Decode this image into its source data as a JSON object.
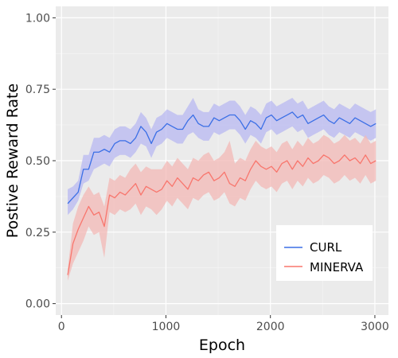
{
  "chart_data": {
    "type": "line",
    "xlabel": "Epoch",
    "ylabel": "Postive Reward Rate",
    "xlim": [
      -55,
      3130
    ],
    "ylim": [
      -0.04,
      1.04
    ],
    "x_ticks": [
      0,
      1000,
      2000,
      3000
    ],
    "x_tick_labels": [
      "0",
      "1000",
      "2000",
      "3000"
    ],
    "y_ticks": [
      0.0,
      0.25,
      0.5,
      0.75,
      1.0
    ],
    "y_tick_labels": [
      "0.00",
      "0.25",
      "0.50",
      "0.75",
      "1.00"
    ],
    "grid": true,
    "legend_position": "bottom-right",
    "x": [
      60,
      110,
      160,
      210,
      260,
      310,
      360,
      410,
      460,
      510,
      560,
      610,
      660,
      710,
      760,
      810,
      860,
      910,
      960,
      1010,
      1060,
      1110,
      1160,
      1210,
      1260,
      1310,
      1360,
      1410,
      1460,
      1510,
      1560,
      1610,
      1660,
      1710,
      1760,
      1810,
      1860,
      1910,
      1960,
      2010,
      2060,
      2110,
      2160,
      2210,
      2260,
      2310,
      2360,
      2410,
      2460,
      2510,
      2560,
      2610,
      2660,
      2710,
      2760,
      2810,
      2860,
      2910,
      2960,
      3010
    ],
    "series": [
      {
        "name": "CURL",
        "color": "#3b6fe6",
        "band_color": "#b8b8f2",
        "values": [
          0.35,
          0.37,
          0.39,
          0.47,
          0.47,
          0.53,
          0.53,
          0.54,
          0.53,
          0.56,
          0.57,
          0.57,
          0.56,
          0.58,
          0.62,
          0.6,
          0.56,
          0.6,
          0.61,
          0.63,
          0.62,
          0.61,
          0.61,
          0.64,
          0.66,
          0.63,
          0.62,
          0.62,
          0.65,
          0.64,
          0.65,
          0.66,
          0.66,
          0.64,
          0.61,
          0.64,
          0.63,
          0.61,
          0.65,
          0.66,
          0.64,
          0.65,
          0.66,
          0.67,
          0.65,
          0.66,
          0.63,
          0.64,
          0.65,
          0.66,
          0.64,
          0.63,
          0.65,
          0.64,
          0.63,
          0.65,
          0.64,
          0.63,
          0.62,
          0.63
        ],
        "lower": [
          0.31,
          0.33,
          0.36,
          0.42,
          0.43,
          0.47,
          0.48,
          0.49,
          0.48,
          0.51,
          0.52,
          0.52,
          0.51,
          0.53,
          0.56,
          0.55,
          0.51,
          0.55,
          0.56,
          0.58,
          0.57,
          0.56,
          0.56,
          0.59,
          0.6,
          0.58,
          0.57,
          0.57,
          0.6,
          0.59,
          0.6,
          0.61,
          0.61,
          0.59,
          0.56,
          0.59,
          0.58,
          0.56,
          0.6,
          0.61,
          0.59,
          0.6,
          0.61,
          0.62,
          0.6,
          0.61,
          0.58,
          0.59,
          0.6,
          0.61,
          0.59,
          0.58,
          0.6,
          0.59,
          0.58,
          0.6,
          0.59,
          0.58,
          0.57,
          0.58
        ],
        "upper": [
          0.4,
          0.41,
          0.43,
          0.52,
          0.52,
          0.58,
          0.58,
          0.59,
          0.58,
          0.61,
          0.62,
          0.62,
          0.61,
          0.63,
          0.67,
          0.65,
          0.61,
          0.65,
          0.66,
          0.68,
          0.67,
          0.66,
          0.66,
          0.69,
          0.72,
          0.68,
          0.67,
          0.67,
          0.7,
          0.69,
          0.7,
          0.71,
          0.71,
          0.69,
          0.66,
          0.69,
          0.68,
          0.66,
          0.7,
          0.71,
          0.69,
          0.7,
          0.71,
          0.72,
          0.7,
          0.71,
          0.68,
          0.69,
          0.7,
          0.71,
          0.69,
          0.68,
          0.7,
          0.69,
          0.68,
          0.7,
          0.69,
          0.68,
          0.67,
          0.68
        ]
      },
      {
        "name": "MINERVA",
        "color": "#f8766d",
        "band_color": "#f3b8b5",
        "values": [
          0.1,
          0.21,
          0.26,
          0.3,
          0.34,
          0.31,
          0.32,
          0.27,
          0.38,
          0.37,
          0.39,
          0.38,
          0.4,
          0.42,
          0.38,
          0.41,
          0.4,
          0.39,
          0.4,
          0.43,
          0.41,
          0.44,
          0.42,
          0.4,
          0.44,
          0.43,
          0.45,
          0.46,
          0.43,
          0.44,
          0.46,
          0.42,
          0.41,
          0.44,
          0.43,
          0.47,
          0.5,
          0.48,
          0.47,
          0.48,
          0.46,
          0.49,
          0.5,
          0.47,
          0.5,
          0.48,
          0.51,
          0.49,
          0.5,
          0.52,
          0.51,
          0.49,
          0.5,
          0.52,
          0.5,
          0.51,
          0.49,
          0.52,
          0.49,
          0.5
        ],
        "lower": [
          0.08,
          0.14,
          0.18,
          0.22,
          0.27,
          0.24,
          0.25,
          0.16,
          0.32,
          0.31,
          0.33,
          0.32,
          0.33,
          0.35,
          0.31,
          0.34,
          0.33,
          0.31,
          0.33,
          0.36,
          0.34,
          0.37,
          0.35,
          0.33,
          0.37,
          0.36,
          0.38,
          0.39,
          0.36,
          0.37,
          0.39,
          0.35,
          0.34,
          0.37,
          0.36,
          0.4,
          0.43,
          0.41,
          0.4,
          0.41,
          0.39,
          0.42,
          0.43,
          0.4,
          0.43,
          0.41,
          0.44,
          0.42,
          0.43,
          0.45,
          0.44,
          0.42,
          0.43,
          0.45,
          0.43,
          0.44,
          0.42,
          0.45,
          0.42,
          0.43
        ],
        "upper": [
          0.12,
          0.28,
          0.34,
          0.38,
          0.41,
          0.38,
          0.39,
          0.34,
          0.44,
          0.43,
          0.45,
          0.44,
          0.47,
          0.49,
          0.46,
          0.48,
          0.47,
          0.47,
          0.47,
          0.5,
          0.48,
          0.51,
          0.49,
          0.47,
          0.51,
          0.5,
          0.52,
          0.53,
          0.5,
          0.51,
          0.53,
          0.57,
          0.49,
          0.51,
          0.5,
          0.54,
          0.57,
          0.55,
          0.54,
          0.55,
          0.53,
          0.56,
          0.57,
          0.54,
          0.57,
          0.55,
          0.58,
          0.56,
          0.57,
          0.59,
          0.58,
          0.56,
          0.57,
          0.59,
          0.57,
          0.58,
          0.56,
          0.59,
          0.56,
          0.57
        ]
      }
    ]
  }
}
